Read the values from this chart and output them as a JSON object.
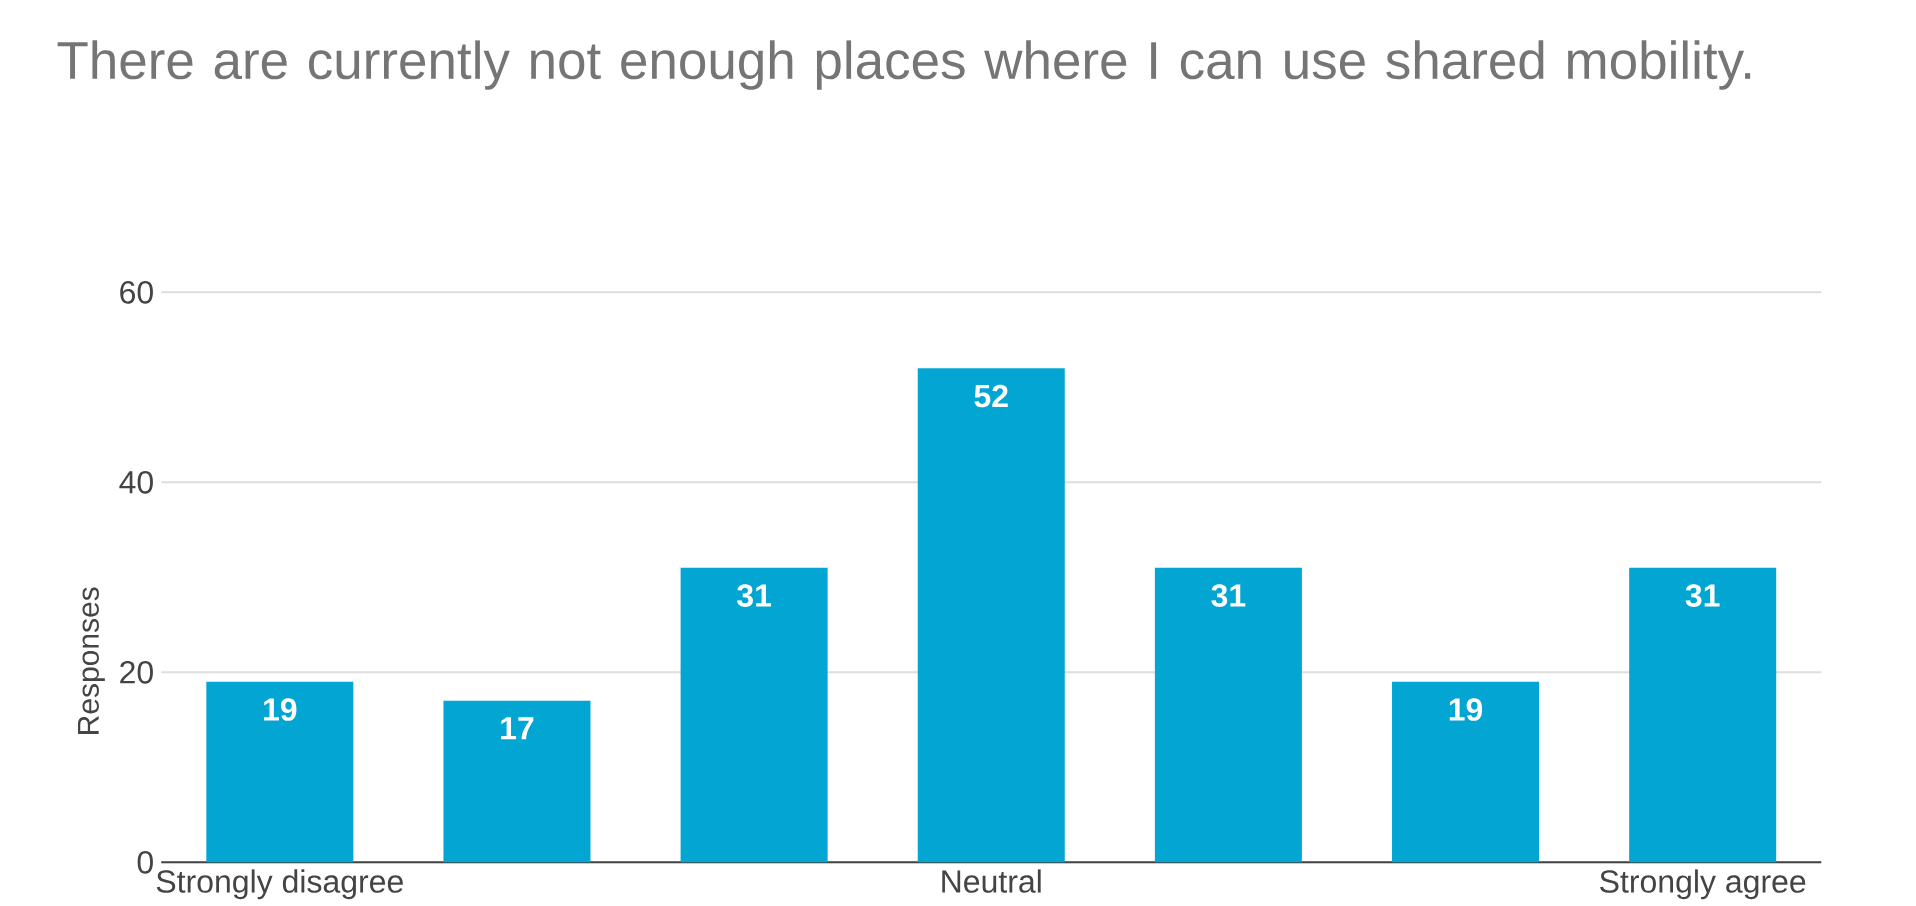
{
  "chart_data": {
    "type": "bar",
    "title": "There are currently not enough places where I can use shared mobility.",
    "ylabel": "Responses",
    "categories": [
      "Strongly disagree",
      null,
      null,
      "Neutral",
      null,
      null,
      "Strongly agree"
    ],
    "values": [
      19,
      17,
      31,
      52,
      31,
      19,
      31
    ],
    "color": "#03a5d3",
    "ylim": [
      0,
      60
    ],
    "yticks": [
      0,
      20,
      40,
      60
    ],
    "grid": "y",
    "data_labels": true
  }
}
